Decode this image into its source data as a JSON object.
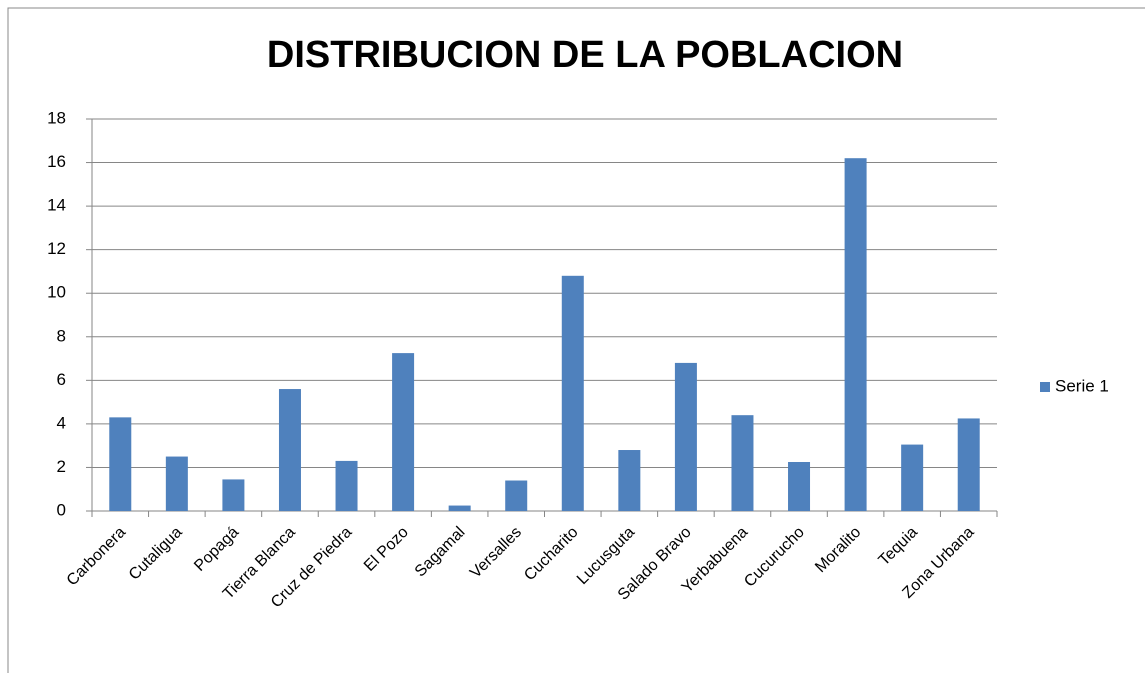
{
  "chart_data": {
    "type": "bar",
    "title": "DISTRIBUCION DE LA POBLACION",
    "categories": [
      "Carbonera",
      "Cutaligua",
      "Popagá",
      "Tierra Blanca",
      "Cruz de Piedra",
      "El Pozo",
      "Sagamal",
      "Versalles",
      "Cucharito",
      "Lucusguta",
      "Salado Bravo",
      "Yerbabuena",
      "Cucurucho",
      "Moralito",
      "Tequia",
      "Zona Urbana"
    ],
    "series": [
      {
        "name": "Serie 1",
        "color": "#4f81bd",
        "values": [
          4.3,
          2.5,
          1.45,
          5.6,
          2.3,
          7.25,
          0.25,
          1.4,
          10.8,
          2.8,
          6.8,
          4.4,
          2.25,
          16.2,
          3.05,
          4.25
        ]
      }
    ],
    "ylim": [
      0,
      18
    ],
    "yticks": [
      0,
      2,
      4,
      6,
      8,
      10,
      12,
      14,
      16,
      18
    ],
    "grid": true,
    "legend": "right"
  }
}
